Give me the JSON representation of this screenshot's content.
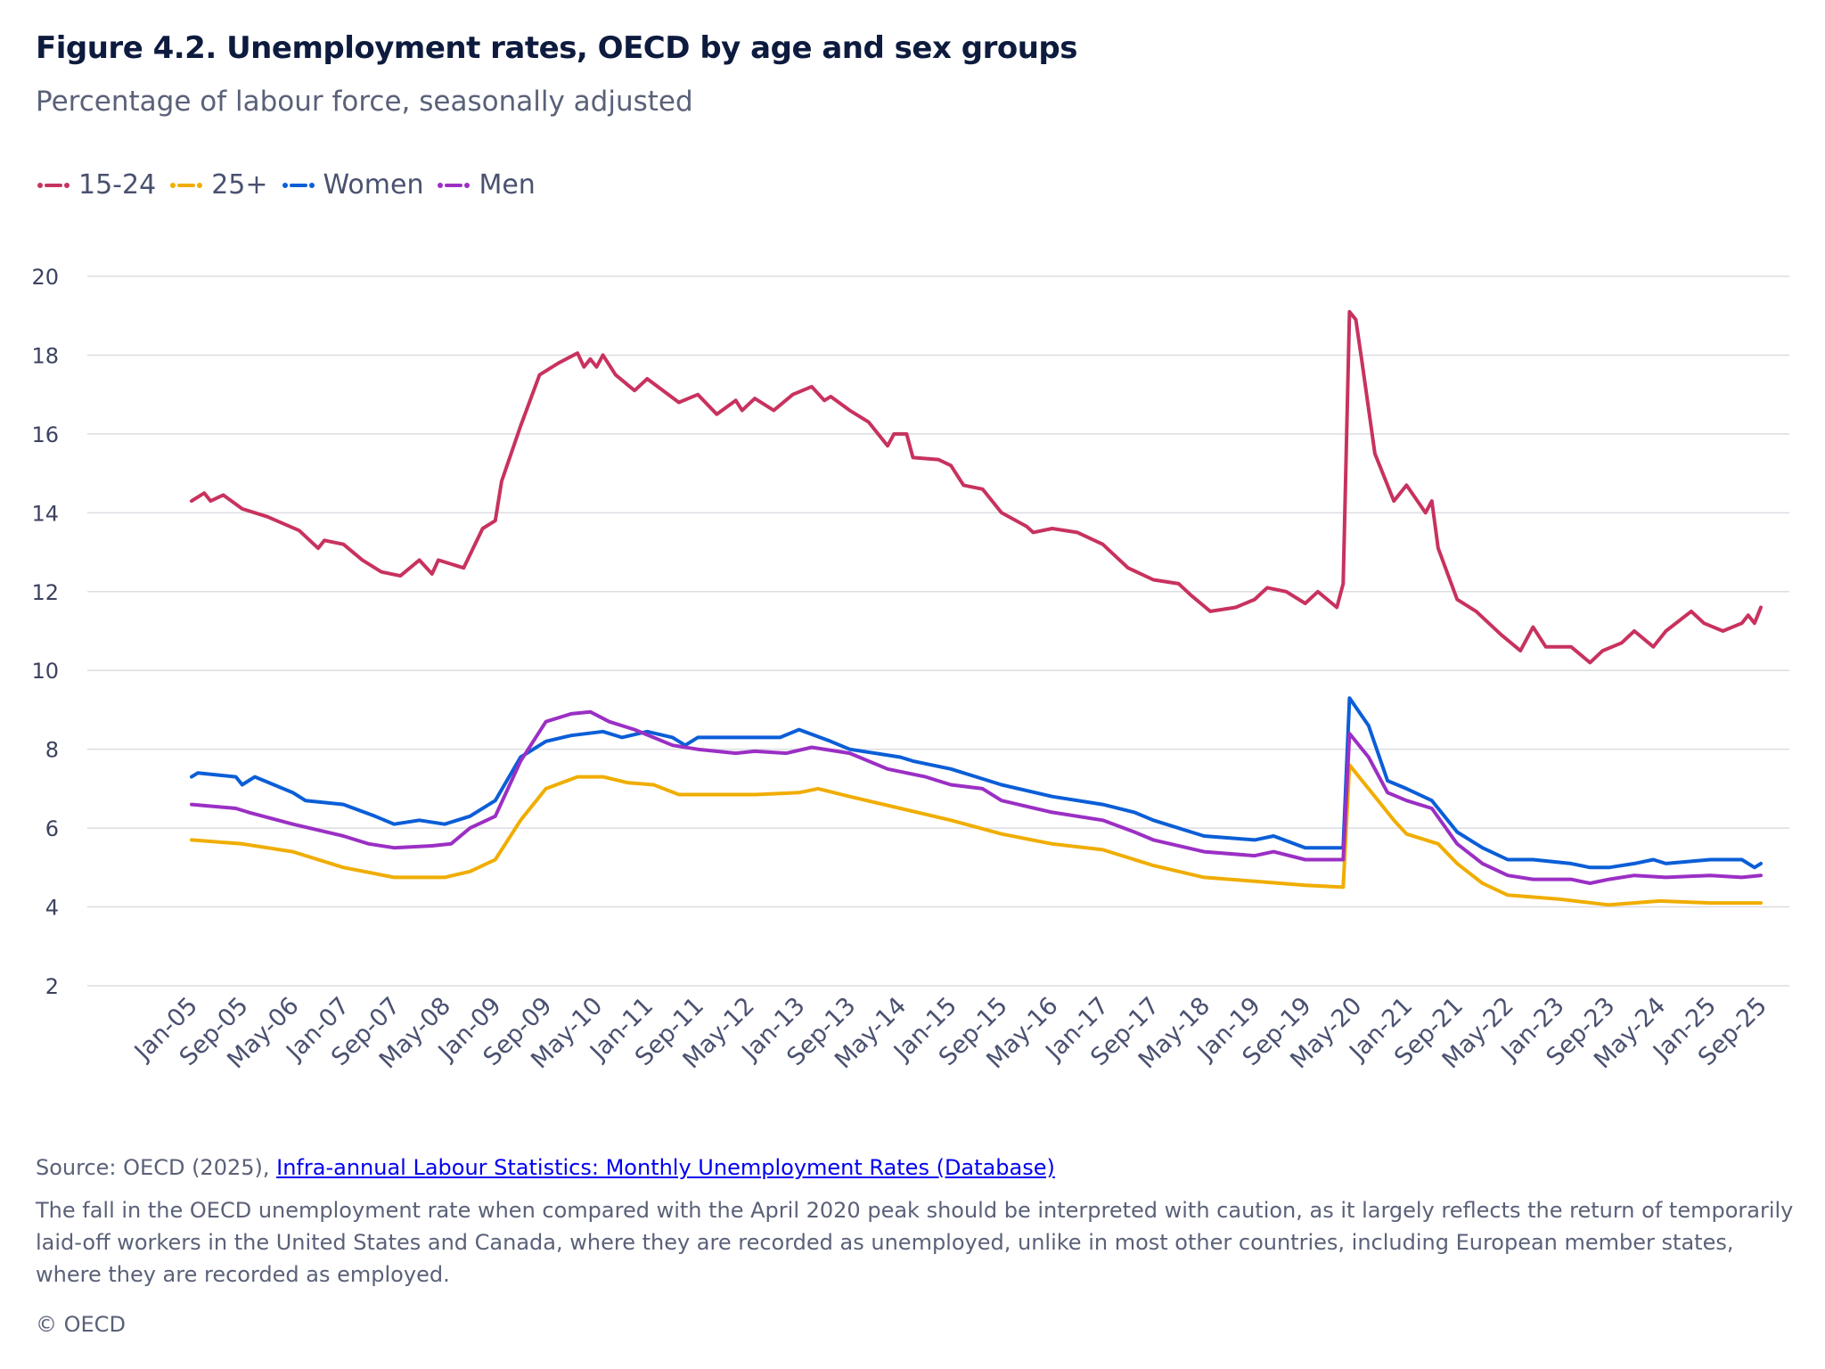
{
  "chart_data": {
    "type": "line",
    "title": "Figure 4.2. Unemployment rates, OECD by age and sex groups",
    "subtitle": "Percentage of labour force, seasonally adjusted",
    "xlabel": "",
    "ylabel": "",
    "x_range": [
      "2005-01",
      "2025-09"
    ],
    "ylim": [
      2,
      20
    ],
    "y_ticks": [
      2,
      4,
      6,
      8,
      10,
      12,
      14,
      16,
      18,
      20
    ],
    "x_tick_labels": [
      "Jan-05",
      "Sep-05",
      "May-06",
      "Jan-07",
      "Sep-07",
      "May-08",
      "Jan-09",
      "Sep-09",
      "May-10",
      "Jan-11",
      "Sep-11",
      "May-12",
      "Jan-13",
      "Sep-13",
      "May-14",
      "Jan-15",
      "Sep-15",
      "May-16",
      "Jan-17",
      "Sep-17",
      "May-18",
      "Jan-19",
      "Sep-19",
      "May-20",
      "Jan-21",
      "Sep-21",
      "May-22",
      "Jan-23",
      "Sep-23",
      "May-24",
      "Jan-25",
      "Sep-25"
    ],
    "grid": true,
    "legend_position": "top-left",
    "series": [
      {
        "name": "15-24",
        "color": "#c8325e",
        "points": [
          [
            "2005-01",
            14.3
          ],
          [
            "2005-03",
            14.5
          ],
          [
            "2005-04",
            14.3
          ],
          [
            "2005-06",
            14.45
          ],
          [
            "2005-09",
            14.1
          ],
          [
            "2006-01",
            13.9
          ],
          [
            "2006-06",
            13.55
          ],
          [
            "2006-09",
            13.1
          ],
          [
            "2006-10",
            13.3
          ],
          [
            "2007-01",
            13.2
          ],
          [
            "2007-04",
            12.8
          ],
          [
            "2007-07",
            12.5
          ],
          [
            "2007-10",
            12.4
          ],
          [
            "2008-01",
            12.8
          ],
          [
            "2008-03",
            12.45
          ],
          [
            "2008-04",
            12.8
          ],
          [
            "2008-08",
            12.6
          ],
          [
            "2008-11",
            13.6
          ],
          [
            "2009-01",
            13.8
          ],
          [
            "2009-02",
            14.8
          ],
          [
            "2009-05",
            16.2
          ],
          [
            "2009-08",
            17.5
          ],
          [
            "2009-11",
            17.8
          ],
          [
            "2010-02",
            18.05
          ],
          [
            "2010-03",
            17.7
          ],
          [
            "2010-04",
            17.9
          ],
          [
            "2010-05",
            17.7
          ],
          [
            "2010-06",
            18.0
          ],
          [
            "2010-08",
            17.5
          ],
          [
            "2010-11",
            17.1
          ],
          [
            "2011-01",
            17.4
          ],
          [
            "2011-06",
            16.8
          ],
          [
            "2011-09",
            17.0
          ],
          [
            "2011-12",
            16.5
          ],
          [
            "2012-03",
            16.85
          ],
          [
            "2012-04",
            16.6
          ],
          [
            "2012-06",
            16.9
          ],
          [
            "2012-09",
            16.6
          ],
          [
            "2012-12",
            17.0
          ],
          [
            "2013-03",
            17.2
          ],
          [
            "2013-05",
            16.85
          ],
          [
            "2013-06",
            16.95
          ],
          [
            "2013-09",
            16.6
          ],
          [
            "2013-12",
            16.3
          ],
          [
            "2014-03",
            15.7
          ],
          [
            "2014-04",
            16.0
          ],
          [
            "2014-06",
            16.0
          ],
          [
            "2014-07",
            15.4
          ],
          [
            "2014-11",
            15.35
          ],
          [
            "2015-01",
            15.2
          ],
          [
            "2015-03",
            14.7
          ],
          [
            "2015-06",
            14.6
          ],
          [
            "2015-09",
            14.0
          ],
          [
            "2016-01",
            13.65
          ],
          [
            "2016-02",
            13.5
          ],
          [
            "2016-05",
            13.6
          ],
          [
            "2016-09",
            13.5
          ],
          [
            "2017-01",
            13.2
          ],
          [
            "2017-05",
            12.6
          ],
          [
            "2017-09",
            12.3
          ],
          [
            "2018-01",
            12.2
          ],
          [
            "2018-03",
            11.9
          ],
          [
            "2018-06",
            11.5
          ],
          [
            "2018-10",
            11.6
          ],
          [
            "2019-01",
            11.8
          ],
          [
            "2019-03",
            12.1
          ],
          [
            "2019-06",
            12.0
          ],
          [
            "2019-09",
            11.7
          ],
          [
            "2019-11",
            12.0
          ],
          [
            "2020-02",
            11.6
          ],
          [
            "2020-03",
            12.2
          ],
          [
            "2020-04",
            19.1
          ],
          [
            "2020-05",
            18.9
          ],
          [
            "2020-06",
            17.8
          ],
          [
            "2020-08",
            15.5
          ],
          [
            "2020-11",
            14.3
          ],
          [
            "2021-01",
            14.7
          ],
          [
            "2021-04",
            14.0
          ],
          [
            "2021-05",
            14.3
          ],
          [
            "2021-06",
            13.1
          ],
          [
            "2021-09",
            11.8
          ],
          [
            "2021-12",
            11.5
          ],
          [
            "2022-04",
            10.9
          ],
          [
            "2022-07",
            10.5
          ],
          [
            "2022-09",
            11.1
          ],
          [
            "2022-11",
            10.6
          ],
          [
            "2023-03",
            10.6
          ],
          [
            "2023-06",
            10.2
          ],
          [
            "2023-08",
            10.5
          ],
          [
            "2023-11",
            10.7
          ],
          [
            "2024-01",
            11.0
          ],
          [
            "2024-04",
            10.6
          ],
          [
            "2024-06",
            11.0
          ],
          [
            "2024-10",
            11.5
          ],
          [
            "2024-12",
            11.2
          ],
          [
            "2025-03",
            11.0
          ],
          [
            "2025-06",
            11.2
          ],
          [
            "2025-07",
            11.4
          ],
          [
            "2025-08",
            11.2
          ],
          [
            "2025-09",
            11.6
          ]
        ]
      },
      {
        "name": "25+",
        "color": "#f0ad00",
        "points": [
          [
            "2005-01",
            5.7
          ],
          [
            "2005-09",
            5.6
          ],
          [
            "2006-05",
            5.4
          ],
          [
            "2007-01",
            5.0
          ],
          [
            "2007-09",
            4.75
          ],
          [
            "2008-05",
            4.75
          ],
          [
            "2008-09",
            4.9
          ],
          [
            "2009-01",
            5.2
          ],
          [
            "2009-05",
            6.2
          ],
          [
            "2009-09",
            7.0
          ],
          [
            "2010-02",
            7.3
          ],
          [
            "2010-06",
            7.3
          ],
          [
            "2010-10",
            7.15
          ],
          [
            "2011-02",
            7.1
          ],
          [
            "2011-06",
            6.85
          ],
          [
            "2012-01",
            6.85
          ],
          [
            "2012-06",
            6.85
          ],
          [
            "2013-01",
            6.9
          ],
          [
            "2013-04",
            7.0
          ],
          [
            "2013-09",
            6.8
          ],
          [
            "2014-05",
            6.5
          ],
          [
            "2015-01",
            6.2
          ],
          [
            "2015-09",
            5.85
          ],
          [
            "2016-05",
            5.6
          ],
          [
            "2017-01",
            5.45
          ],
          [
            "2017-09",
            5.05
          ],
          [
            "2018-05",
            4.75
          ],
          [
            "2019-01",
            4.65
          ],
          [
            "2019-09",
            4.55
          ],
          [
            "2020-03",
            4.5
          ],
          [
            "2020-04",
            7.6
          ],
          [
            "2020-08",
            6.8
          ],
          [
            "2020-11",
            6.2
          ],
          [
            "2021-01",
            5.85
          ],
          [
            "2021-06",
            5.6
          ],
          [
            "2021-09",
            5.1
          ],
          [
            "2022-01",
            4.6
          ],
          [
            "2022-05",
            4.3
          ],
          [
            "2023-01",
            4.2
          ],
          [
            "2023-09",
            4.05
          ],
          [
            "2024-05",
            4.15
          ],
          [
            "2025-01",
            4.1
          ],
          [
            "2025-09",
            4.1
          ]
        ]
      },
      {
        "name": "Women",
        "color": "#0b5ed7",
        "points": [
          [
            "2005-01",
            7.3
          ],
          [
            "2005-02",
            7.4
          ],
          [
            "2005-08",
            7.3
          ],
          [
            "2005-09",
            7.1
          ],
          [
            "2005-11",
            7.3
          ],
          [
            "2006-05",
            6.9
          ],
          [
            "2006-07",
            6.7
          ],
          [
            "2007-01",
            6.6
          ],
          [
            "2007-06",
            6.3
          ],
          [
            "2007-09",
            6.1
          ],
          [
            "2008-01",
            6.2
          ],
          [
            "2008-05",
            6.1
          ],
          [
            "2008-09",
            6.3
          ],
          [
            "2009-01",
            6.7
          ],
          [
            "2009-05",
            7.8
          ],
          [
            "2009-09",
            8.2
          ],
          [
            "2010-01",
            8.35
          ],
          [
            "2010-06",
            8.45
          ],
          [
            "2010-09",
            8.3
          ],
          [
            "2011-01",
            8.45
          ],
          [
            "2011-05",
            8.3
          ],
          [
            "2011-07",
            8.1
          ],
          [
            "2011-09",
            8.3
          ],
          [
            "2012-06",
            8.3
          ],
          [
            "2012-10",
            8.3
          ],
          [
            "2013-01",
            8.5
          ],
          [
            "2013-06",
            8.2
          ],
          [
            "2013-09",
            8.0
          ],
          [
            "2014-05",
            7.8
          ],
          [
            "2014-07",
            7.7
          ],
          [
            "2015-01",
            7.5
          ],
          [
            "2015-05",
            7.3
          ],
          [
            "2015-09",
            7.1
          ],
          [
            "2016-05",
            6.8
          ],
          [
            "2017-01",
            6.6
          ],
          [
            "2017-06",
            6.4
          ],
          [
            "2017-09",
            6.2
          ],
          [
            "2018-05",
            5.8
          ],
          [
            "2019-01",
            5.7
          ],
          [
            "2019-04",
            5.8
          ],
          [
            "2019-09",
            5.5
          ],
          [
            "2020-03",
            5.5
          ],
          [
            "2020-04",
            9.3
          ],
          [
            "2020-07",
            8.6
          ],
          [
            "2020-10",
            7.2
          ],
          [
            "2021-01",
            7.0
          ],
          [
            "2021-05",
            6.7
          ],
          [
            "2021-09",
            5.9
          ],
          [
            "2022-01",
            5.5
          ],
          [
            "2022-05",
            5.2
          ],
          [
            "2022-09",
            5.2
          ],
          [
            "2023-03",
            5.1
          ],
          [
            "2023-06",
            5.0
          ],
          [
            "2023-09",
            5.0
          ],
          [
            "2024-01",
            5.1
          ],
          [
            "2024-04",
            5.2
          ],
          [
            "2024-06",
            5.1
          ],
          [
            "2025-01",
            5.2
          ],
          [
            "2025-06",
            5.2
          ],
          [
            "2025-08",
            5.0
          ],
          [
            "2025-09",
            5.1
          ]
        ]
      },
      {
        "name": "Men",
        "color": "#9b2fc4",
        "points": [
          [
            "2005-01",
            6.6
          ],
          [
            "2005-08",
            6.5
          ],
          [
            "2005-10",
            6.4
          ],
          [
            "2006-05",
            6.1
          ],
          [
            "2007-01",
            5.8
          ],
          [
            "2007-05",
            5.6
          ],
          [
            "2007-09",
            5.5
          ],
          [
            "2008-03",
            5.55
          ],
          [
            "2008-06",
            5.6
          ],
          [
            "2008-09",
            6.0
          ],
          [
            "2009-01",
            6.3
          ],
          [
            "2009-05",
            7.7
          ],
          [
            "2009-09",
            8.7
          ],
          [
            "2010-01",
            8.9
          ],
          [
            "2010-04",
            8.95
          ],
          [
            "2010-07",
            8.7
          ],
          [
            "2010-11",
            8.5
          ],
          [
            "2011-05",
            8.1
          ],
          [
            "2011-09",
            8.0
          ],
          [
            "2012-03",
            7.9
          ],
          [
            "2012-06",
            7.95
          ],
          [
            "2012-11",
            7.9
          ],
          [
            "2013-03",
            8.05
          ],
          [
            "2013-09",
            7.9
          ],
          [
            "2014-03",
            7.5
          ],
          [
            "2014-09",
            7.3
          ],
          [
            "2015-01",
            7.1
          ],
          [
            "2015-06",
            7.0
          ],
          [
            "2015-09",
            6.7
          ],
          [
            "2016-05",
            6.4
          ],
          [
            "2017-01",
            6.2
          ],
          [
            "2017-06",
            5.9
          ],
          [
            "2017-09",
            5.7
          ],
          [
            "2018-05",
            5.4
          ],
          [
            "2019-01",
            5.3
          ],
          [
            "2019-04",
            5.4
          ],
          [
            "2019-09",
            5.2
          ],
          [
            "2020-03",
            5.2
          ],
          [
            "2020-04",
            8.4
          ],
          [
            "2020-07",
            7.8
          ],
          [
            "2020-10",
            6.9
          ],
          [
            "2021-01",
            6.7
          ],
          [
            "2021-05",
            6.5
          ],
          [
            "2021-09",
            5.6
          ],
          [
            "2022-01",
            5.1
          ],
          [
            "2022-05",
            4.8
          ],
          [
            "2022-09",
            4.7
          ],
          [
            "2023-03",
            4.7
          ],
          [
            "2023-06",
            4.6
          ],
          [
            "2023-09",
            4.7
          ],
          [
            "2024-01",
            4.8
          ],
          [
            "2024-06",
            4.75
          ],
          [
            "2025-01",
            4.8
          ],
          [
            "2025-06",
            4.75
          ],
          [
            "2025-09",
            4.8
          ]
        ]
      }
    ]
  },
  "footer": {
    "source_prefix": "Source: OECD (2025), ",
    "source_link": "Infra-annual Labour Statistics: Monthly Unemployment Rates (Database)",
    "note": "The fall in the OECD unemployment rate when compared with the April 2020 peak should be interpreted with caution, as it largely reflects the return of temporarily laid-off workers in the United States and Canada, where they are recorded as unemployed, unlike in most other countries, including European member states, where they are recorded as employed.",
    "copyright": "© OECD"
  }
}
